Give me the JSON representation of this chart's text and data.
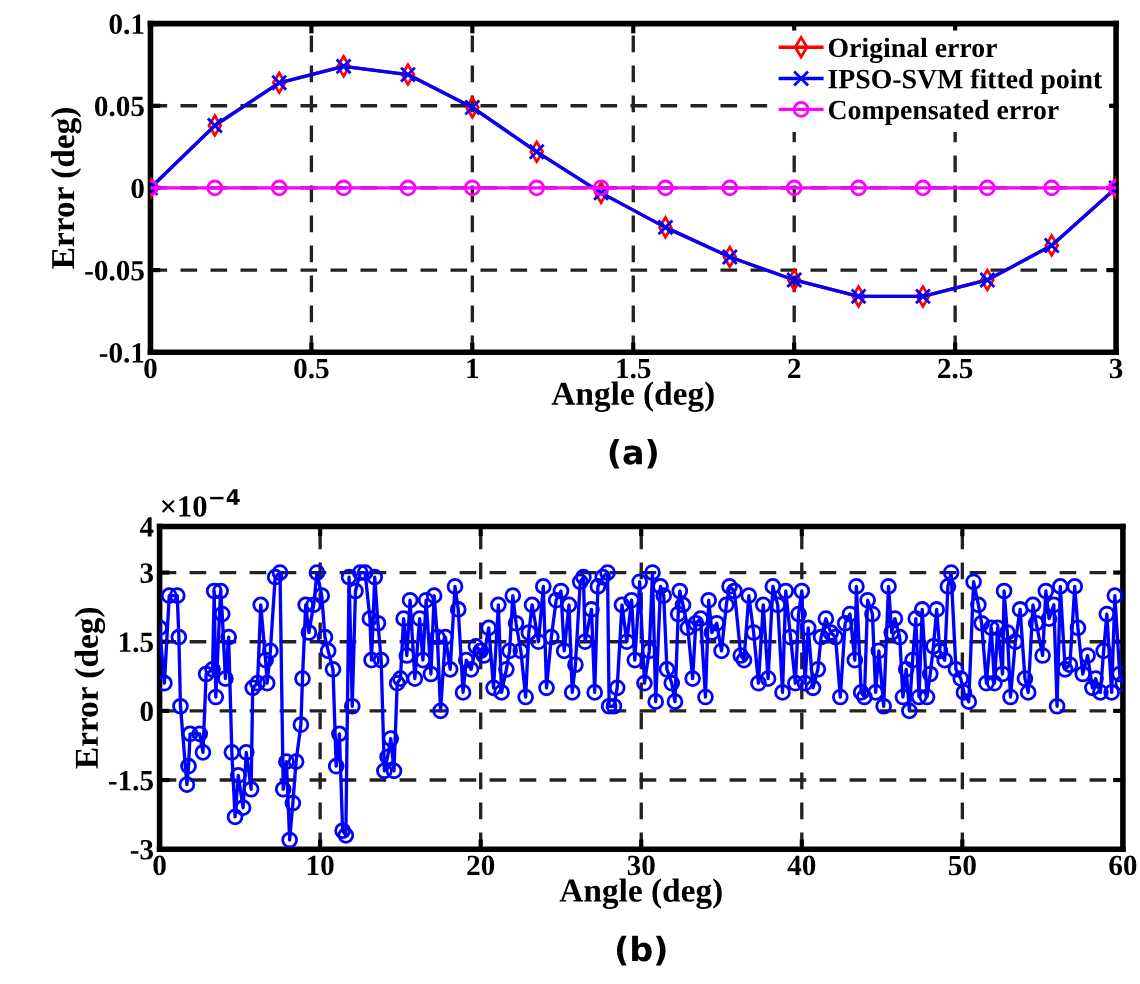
{
  "chart_data": [
    {
      "type": "line",
      "xlabel": "Angle (deg)",
      "ylabel": "Error (deg)",
      "annotations": [
        "(a)"
      ],
      "x": [
        0,
        0.2,
        0.4,
        0.6,
        0.8,
        1.0,
        1.2,
        1.4,
        1.6,
        1.8,
        2.0,
        2.2,
        2.4,
        2.6,
        2.8,
        3.0
      ],
      "series": [
        {
          "name": "Original error",
          "color": "#ff0000",
          "marker": "diamond",
          "values": [
            0,
            0.038,
            0.064,
            0.074,
            0.069,
            0.049,
            0.022,
            -0.003,
            -0.024,
            -0.042,
            -0.056,
            -0.066,
            -0.066,
            -0.056,
            -0.035,
            0
          ]
        },
        {
          "name": "IPSO-SVM fitted point",
          "color": "#0000ff",
          "marker": "cross",
          "values": [
            0,
            0.038,
            0.064,
            0.074,
            0.069,
            0.049,
            0.022,
            -0.003,
            -0.024,
            -0.042,
            -0.056,
            -0.066,
            -0.066,
            -0.056,
            -0.035,
            0
          ]
        },
        {
          "name": "Compensated error",
          "color": "#ff00ff",
          "marker": "circle",
          "values": [
            0,
            0,
            0,
            0,
            0,
            0,
            0,
            0,
            0,
            0,
            0,
            0,
            0,
            0,
            0,
            0
          ]
        }
      ],
      "xlim": [
        0,
        3
      ],
      "xticks": [
        0,
        0.5,
        1,
        1.5,
        2,
        2.5,
        3
      ],
      "ylim": [
        -0.1,
        0.1
      ],
      "yticks": [
        -0.1,
        -0.05,
        0,
        0.05,
        0.1
      ],
      "grid": true,
      "legend": "top right",
      "line_style": "solid"
    },
    {
      "type": "line",
      "xlabel": "Angle (deg)",
      "ylabel": "Error (deg)",
      "annotations": [
        "(b)",
        "×10$^{−4}$"
      ],
      "series": [
        {
          "color": "#0000ff",
          "marker": "circle",
          "x": [
            0,
            0.3,
            0.6,
            1.1,
            1.2,
            1.3,
            1.7,
            1.8,
            1.9,
            2.5,
            2.7,
            2.9,
            3.3,
            3.4,
            3.5,
            3.8,
            3.9,
            4.1,
            4.3,
            4.5,
            4.7,
            4.9,
            5.2,
            5.4,
            5.7,
            5.8,
            6.1,
            6.3,
            6.6,
            6.7,
            6.9,
            7.2,
            7.5,
            7.7,
            7.9,
            8.1,
            8.3,
            8.5,
            8.8,
            8.9,
            9.1,
            9.3,
            9.6,
            9.8,
            10.1,
            10.3,
            10.5,
            10.8,
            11.0,
            11.2,
            11.4,
            11.6,
            11.8,
            12.0,
            12.2,
            12.5,
            12.8,
            13.1,
            13.2,
            13.4,
            13.6,
            13.8,
            14.0,
            14.2,
            14.4,
            14.6,
            14.8,
            15.0,
            15.2,
            15.4,
            15.6,
            15.9,
            16.2,
            16.4,
            16.6,
            16.9,
            17.1,
            17.3,
            17.5,
            17.8,
            18.1,
            18.4,
            18.6,
            18.9,
            19.1,
            19.4,
            19.7,
            20.0,
            20.2,
            20.5,
            20.8,
            21.1,
            21.3,
            21.6,
            21.8,
            22.0,
            22.2,
            22.5,
            22.8,
            23.0,
            23.2,
            23.6,
            23.9,
            24.1,
            24.4,
            24.7,
            25.0,
            25.2,
            25.5,
            25.7,
            25.9,
            26.2,
            26.4,
            26.5,
            26.9,
            27.1,
            27.3,
            27.6,
            27.9,
            28.0,
            28.3,
            28.5,
            28.8,
            29.1,
            29.4,
            29.6,
            29.9,
            30.2,
            30.5,
            30.7,
            30.9,
            31.2,
            31.4,
            31.6,
            31.9,
            32.1,
            32.3,
            32.4,
            32.6,
            32.9,
            33.2,
            33.4,
            33.7,
            34.0,
            34.2,
            34.4,
            34.7,
            35.0,
            35.3,
            35.5,
            35.8,
            36.2,
            36.4,
            36.7,
            37.0,
            37.3,
            37.6,
            37.9,
            38.2,
            38.5,
            38.8,
            39.0,
            39.3,
            39.6,
            39.8,
            40.0,
            40.2,
            40.4,
            40.7,
            41.0,
            41.2,
            41.5,
            41.8,
            42.1,
            42.4,
            42.7,
            43.0,
            43.3,
            43.4,
            43.7,
            43.9,
            44.1,
            44.4,
            44.6,
            44.8,
            45.1,
            45.4,
            45.6,
            45.8,
            46.1,
            46.3,
            46.5,
            46.7,
            46.9,
            47.1,
            47.3,
            47.5,
            47.8,
            48.0,
            48.2,
            48.4,
            48.6,
            48.9,
            49.1,
            49.3,
            49.6,
            49.9,
            50.1,
            50.4,
            50.7,
            51.0,
            51.2,
            51.5,
            51.8,
            52.0,
            52.2,
            52.5,
            52.6,
            52.8,
            53.0,
            53.3,
            53.6,
            53.9,
            54.1,
            54.4,
            54.6,
            55.0,
            55.2,
            55.4,
            55.7,
            55.9,
            56.1,
            56.4,
            56.7,
            57.0,
            57.2,
            57.5,
            57.8,
            58.1,
            58.3,
            58.6,
            58.8,
            59.0,
            59.3,
            59.5,
            59.8,
            60.0
          ],
          "values": [
            1.8,
            0.6,
            2.5,
            2.5,
            1.6,
            0.1,
            -1.6,
            -1.2,
            -0.5,
            -0.5,
            -0.9,
            0.8,
            0.9,
            2.6,
            0.3,
            2.6,
            2.1,
            0.7,
            1.6,
            -0.9,
            -2.3,
            -1.4,
            -2.1,
            -0.9,
            -1.7,
            0.5,
            0.6,
            2.3,
            1.1,
            0.6,
            1.3,
            2.9,
            3.0,
            -1.7,
            -1.1,
            -2.8,
            -2.0,
            -1.1,
            -0.3,
            0.7,
            2.3,
            1.7,
            2.3,
            3.0,
            2.5,
            1.6,
            1.3,
            0.9,
            -1.2,
            -0.5,
            -2.6,
            -2.7,
            2.9,
            0.1,
            2.6,
            3.0,
            3.0,
            2.0,
            1.1,
            2.9,
            1.9,
            1.1,
            -1.3,
            -1.0,
            -0.6,
            -1.3,
            0.6,
            0.7,
            2.0,
            1.2,
            2.4,
            0.7,
            2.0,
            1.1,
            2.4,
            0.8,
            2.5,
            1.6,
            0.0,
            1.6,
            0.9,
            2.7,
            2.2,
            0.4,
            1.1,
            0.9,
            1.4,
            1.3,
            1.2,
            1.8,
            0.5,
            2.3,
            0.4,
            0.9,
            1.3,
            2.5,
            1.9,
            1.3,
            0.3,
            1.7,
            2.3,
            1.5,
            2.7,
            0.5,
            1.6,
            2.4,
            2.6,
            1.3,
            2.3,
            0.4,
            1.0,
            2.8,
            2.9,
            1.5,
            2.2,
            0.4,
            2.7,
            2.9,
            3.0,
            0.1,
            0.1,
            0.5,
            2.3,
            1.5,
            2.4,
            1.1,
            2.8,
            0.6,
            1.3,
            3.0,
            0.2,
            2.7,
            2.5,
            0.9,
            0.6,
            0.2,
            2.1,
            2.6,
            2.3,
            1.8,
            0.7,
            1.9,
            2.0,
            0.3,
            2.4,
            1.7,
            1.9,
            1.3,
            2.3,
            2.7,
            2.6,
            1.2,
            1.1,
            2.5,
            1.7,
            0.6,
            2.3,
            0.7,
            2.7,
            2.3,
            0.4,
            2.6,
            1.6,
            0.6,
            2.1,
            2.6,
            0.6,
            1.8,
            0.5,
            0.9,
            1.6,
            2.0,
            1.7,
            1.6,
            0.3,
            1.9,
            2.1,
            1.1,
            2.7,
            0.4,
            0.3,
            2.4,
            2.1,
            0.4,
            1.3,
            0.1,
            2.7,
            1.7,
            2.0,
            1.6,
            0.3,
            0.9,
            0.0,
            1.1,
            2.0,
            0.3,
            2.2,
            0.3,
            0.8,
            1.4,
            2.2,
            1.3,
            1.1,
            2.7,
            3.0,
            0.9,
            0.7,
            0.4,
            0.2,
            2.8,
            2.3,
            1.9,
            0.6,
            1.8,
            0.6,
            1.8,
            0.8,
            2.6,
            1.7,
            0.3,
            1.5,
            2.2,
            0.7,
            0.4,
            2.3,
            1.9,
            1.2,
            2.6,
            2.0,
            2.3,
            0.1,
            2.7,
            0.9,
            1.0,
            2.7,
            1.8,
            0.8,
            1.2,
            0.5,
            0.7,
            0.4,
            1.3,
            2.1,
            0.4,
            2.5,
            0.8,
            0.6
          ]
        }
      ],
      "xlim": [
        0,
        60
      ],
      "xticks": [
        0,
        10,
        20,
        30,
        40,
        50,
        60
      ],
      "ylim": [
        -3,
        4
      ],
      "yticks": [
        -3,
        -1.5,
        0,
        1.5,
        3,
        4
      ],
      "grid": true,
      "line_style": "solid"
    }
  ]
}
